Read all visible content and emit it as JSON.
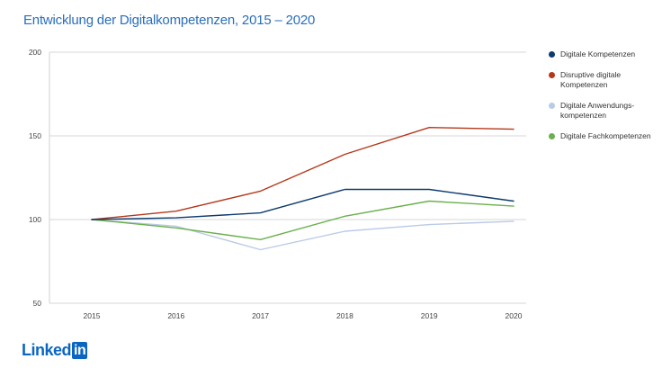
{
  "header": {
    "title": "Entwicklung der Digitalkompetenzen, 2015 – 2020"
  },
  "logo": {
    "text": "Linked",
    "box": "in"
  },
  "chart_data": {
    "type": "line",
    "title": "Entwicklung der Digitalkompetenzen, 2015 – 2020",
    "xlabel": "",
    "ylabel": "",
    "x": [
      "2015",
      "2016",
      "2017",
      "2018",
      "2019",
      "2020"
    ],
    "ylim": [
      50,
      200
    ],
    "yticks": [
      50,
      100,
      150,
      200
    ],
    "grid": true,
    "legend_position": "right",
    "series": [
      {
        "name": "Digitale Kompetenzen",
        "color": "#0d3b6e",
        "values": [
          100,
          101,
          104,
          118,
          118,
          111
        ]
      },
      {
        "name": "Disruptive digitale Kompetenzen",
        "color": "#b5381b",
        "values": [
          100,
          105,
          117,
          139,
          155,
          154
        ]
      },
      {
        "name": "Digitale Anwendungs-kompetenzen",
        "color": "#b9cbe6",
        "values": [
          100,
          96,
          82,
          93,
          97,
          99
        ]
      },
      {
        "name": "Digitale Fachkompetenzen",
        "color": "#6ab04c",
        "values": [
          100,
          95,
          88,
          102,
          111,
          108
        ]
      }
    ]
  }
}
